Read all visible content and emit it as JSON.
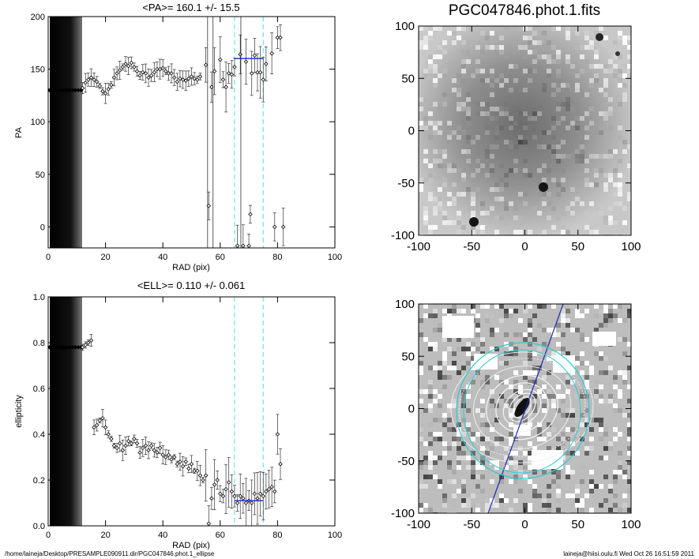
{
  "footer": {
    "left": "/home/laineja/Desktop/PRESAMPLE090911.dir/PGC047846.phot.1_ellipse",
    "right": "laineja@hiisi.oulu.fi  Wed Oct 26 16:51:59 2011"
  },
  "chart_data": [
    {
      "type": "scatter",
      "title": "<PA>= 160.1 +/-  15.5",
      "xlabel": "RAD (pix)",
      "ylabel": "PA",
      "xlim": [
        0,
        100
      ],
      "ylim": [
        -20,
        200
      ],
      "xticks": [
        "0",
        "20",
        "40",
        "60",
        "80",
        "100"
      ],
      "yticks": [
        "0",
        "50",
        "100",
        "150",
        "200"
      ],
      "mean_line": {
        "x": [
          65,
          75
        ],
        "y": 160.1
      },
      "vlines": [
        65,
        75
      ],
      "shaded_range": [
        0,
        12
      ],
      "points": [
        [
          0.5,
          130
        ],
        [
          1.5,
          130
        ],
        [
          2.5,
          130
        ],
        [
          3.5,
          130
        ],
        [
          4.5,
          130
        ],
        [
          5.5,
          130
        ],
        [
          6.5,
          130
        ],
        [
          7.5,
          130
        ],
        [
          8.5,
          130
        ],
        [
          9.5,
          130
        ],
        [
          10.5,
          130
        ],
        [
          11.5,
          130
        ],
        [
          12,
          132
        ],
        [
          13,
          137
        ],
        [
          14,
          140
        ],
        [
          15,
          142
        ],
        [
          16,
          140
        ],
        [
          17,
          138
        ],
        [
          18,
          134
        ],
        [
          19,
          129
        ],
        [
          20,
          127
        ],
        [
          21,
          131
        ],
        [
          22,
          135
        ],
        [
          23,
          142
        ],
        [
          24,
          146
        ],
        [
          25,
          149
        ],
        [
          26,
          152
        ],
        [
          27,
          155
        ],
        [
          28,
          153
        ],
        [
          29,
          156
        ],
        [
          30,
          152
        ],
        [
          31,
          148
        ],
        [
          32,
          144
        ],
        [
          33,
          147
        ],
        [
          34,
          146
        ],
        [
          35,
          142
        ],
        [
          36,
          144
        ],
        [
          37,
          147
        ],
        [
          38,
          150
        ],
        [
          39,
          150
        ],
        [
          40,
          151
        ],
        [
          41,
          148
        ],
        [
          42,
          146
        ],
        [
          43,
          146
        ],
        [
          44,
          142
        ],
        [
          45,
          138
        ],
        [
          46,
          141
        ],
        [
          47,
          140
        ],
        [
          48,
          139
        ],
        [
          49,
          141
        ],
        [
          50,
          143
        ],
        [
          51,
          141
        ],
        [
          52,
          140
        ],
        [
          53,
          143
        ],
        [
          55,
          154
        ],
        [
          56,
          20
        ],
        [
          57,
          133
        ],
        [
          58,
          148
        ],
        [
          60,
          159
        ],
        [
          61,
          140
        ],
        [
          62,
          133
        ],
        [
          63,
          146
        ],
        [
          64,
          145
        ],
        [
          65,
          152
        ],
        [
          66,
          -18
        ],
        [
          67,
          164
        ],
        [
          68,
          -18
        ],
        [
          69,
          157
        ],
        [
          70,
          -18
        ],
        [
          70.5,
          12
        ],
        [
          71,
          146
        ],
        [
          72,
          163
        ],
        [
          73,
          147
        ],
        [
          74,
          147
        ],
        [
          75,
          140
        ],
        [
          76,
          155
        ],
        [
          78,
          165
        ],
        [
          79,
          0
        ],
        [
          80,
          180
        ],
        [
          81,
          180
        ],
        [
          82,
          0
        ]
      ]
    },
    {
      "type": "scatter",
      "title": "<ELL>= 0.110 +/-  0.061",
      "xlabel": "RAD (pix)",
      "ylabel": "ellipticity",
      "xlim": [
        0,
        100
      ],
      "ylim": [
        0.0,
        1.0
      ],
      "xticks": [
        "0",
        "20",
        "40",
        "60",
        "80",
        "100"
      ],
      "yticks": [
        "0.0",
        "0.2",
        "0.4",
        "0.6",
        "0.8",
        "1.0"
      ],
      "mean_line": {
        "x": [
          65,
          75
        ],
        "y": 0.11
      },
      "vlines": [
        65,
        75
      ],
      "shaded_range": [
        0,
        12
      ],
      "points": [
        [
          0.5,
          0.78
        ],
        [
          1.5,
          0.78
        ],
        [
          2.5,
          0.78
        ],
        [
          3.5,
          0.78
        ],
        [
          4.5,
          0.78
        ],
        [
          5.5,
          0.78
        ],
        [
          6.5,
          0.78
        ],
        [
          7.5,
          0.78
        ],
        [
          8.5,
          0.78
        ],
        [
          9.5,
          0.78
        ],
        [
          10.5,
          0.78
        ],
        [
          11.5,
          0.78
        ],
        [
          12,
          0.78
        ],
        [
          13,
          0.79
        ],
        [
          14,
          0.8
        ],
        [
          15,
          0.81
        ],
        [
          16,
          0.43
        ],
        [
          17,
          0.44
        ],
        [
          18,
          0.46
        ],
        [
          19,
          0.47
        ],
        [
          20,
          0.43
        ],
        [
          21,
          0.4
        ],
        [
          22,
          0.38
        ],
        [
          23,
          0.35
        ],
        [
          24,
          0.34
        ],
        [
          25,
          0.36
        ],
        [
          26,
          0.33
        ],
        [
          27,
          0.35
        ],
        [
          28,
          0.37
        ],
        [
          29,
          0.36
        ],
        [
          30,
          0.38
        ],
        [
          31,
          0.36
        ],
        [
          32,
          0.32
        ],
        [
          33,
          0.34
        ],
        [
          34,
          0.35
        ],
        [
          35,
          0.33
        ],
        [
          36,
          0.35
        ],
        [
          37,
          0.33
        ],
        [
          38,
          0.32
        ],
        [
          39,
          0.34
        ],
        [
          40,
          0.31
        ],
        [
          41,
          0.3
        ],
        [
          42,
          0.31
        ],
        [
          43,
          0.29
        ],
        [
          44,
          0.3
        ],
        [
          45,
          0.27
        ],
        [
          46,
          0.28
        ],
        [
          47,
          0.26
        ],
        [
          48,
          0.28
        ],
        [
          49,
          0.25
        ],
        [
          50,
          0.27
        ],
        [
          51,
          0.24
        ],
        [
          52,
          0.24
        ],
        [
          53,
          0.22
        ],
        [
          54,
          0.2
        ],
        [
          55,
          0.22
        ],
        [
          56,
          0.01
        ],
        [
          57,
          0.12
        ],
        [
          58,
          0.18
        ],
        [
          59,
          0.2
        ],
        [
          60,
          0.14
        ],
        [
          61,
          0.13
        ],
        [
          62,
          0.16
        ],
        [
          63,
          0.19
        ],
        [
          64,
          0.15
        ],
        [
          65,
          0.13
        ],
        [
          66,
          0.1
        ],
        [
          67,
          0.13
        ],
        [
          68,
          0.12
        ],
        [
          69,
          0.1
        ],
        [
          70,
          0.11
        ],
        [
          71,
          0.1
        ],
        [
          72,
          0.14
        ],
        [
          73,
          0.12
        ],
        [
          74,
          0.14
        ],
        [
          75,
          0.13
        ],
        [
          76,
          0.15
        ],
        [
          77,
          0.16
        ],
        [
          78,
          0.17
        ],
        [
          79,
          0.15
        ],
        [
          80,
          0.4
        ],
        [
          81,
          0.27
        ]
      ]
    },
    {
      "type": "heatmap",
      "title": "PGC047846.phot.1.fits",
      "xlim": [
        -100,
        100
      ],
      "ylim": [
        -100,
        100
      ],
      "xticks": [
        "-100",
        "-50",
        "0",
        "50",
        "100"
      ],
      "yticks": [
        "100",
        "50",
        "0",
        "-50",
        "-100"
      ],
      "colormap": "gray"
    },
    {
      "type": "heatmap",
      "title": "",
      "xlim": [
        -100,
        100
      ],
      "ylim": [
        -100,
        100
      ],
      "xticks": [
        "-100",
        "-50",
        "0",
        "50",
        "100"
      ],
      "yticks": [
        "100",
        "50",
        "0",
        "-50",
        "-100"
      ],
      "colormap": "gray",
      "overlays": "isophote-ellipses"
    }
  ]
}
